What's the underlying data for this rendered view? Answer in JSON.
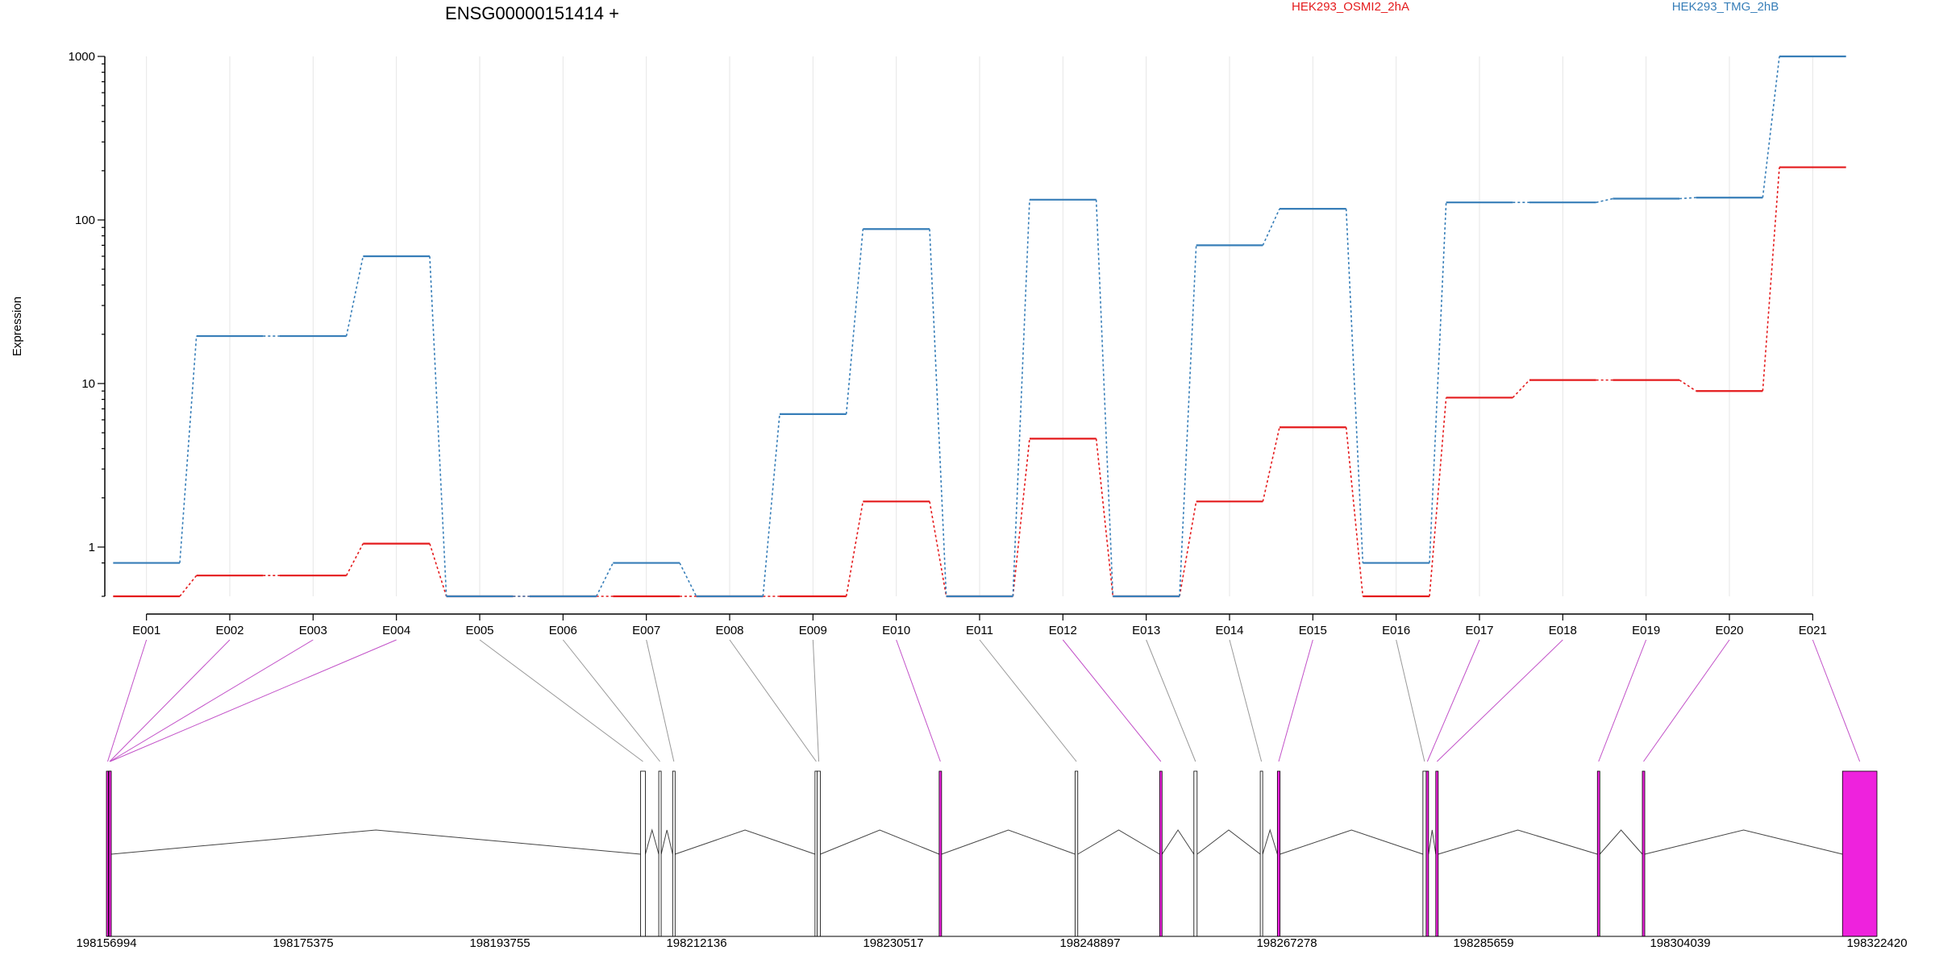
{
  "chart_data": {
    "type": "line",
    "title": "ENSG00000151414 +",
    "ylabel": "Expression",
    "yscale": "log",
    "yticks": [
      1,
      10,
      100,
      1000
    ],
    "ytick_labels": [
      "1",
      "10",
      "100",
      "1000"
    ],
    "categories": [
      "E001",
      "E002",
      "E003",
      "E004",
      "E005",
      "E006",
      "E007",
      "E008",
      "E009",
      "E010",
      "E011",
      "E012",
      "E013",
      "E014",
      "E015",
      "E016",
      "E017",
      "E018",
      "E019",
      "E020",
      "E021"
    ],
    "series": [
      {
        "name": "HEK293_OSMI2_2hA",
        "color": "#e41a1c",
        "values": [
          0.5,
          0.67,
          0.67,
          1.05,
          0.5,
          0.5,
          0.5,
          0.5,
          0.5,
          1.9,
          0.5,
          4.6,
          0.5,
          1.9,
          5.4,
          0.5,
          8.2,
          10.5,
          10.5,
          9.0,
          210
        ]
      },
      {
        "name": "HEK293_TMG_2hB",
        "color": "#377eb8",
        "values": [
          0.8,
          19.5,
          19.5,
          60,
          0.5,
          0.5,
          0.8,
          0.5,
          6.5,
          88,
          0.5,
          133,
          0.5,
          70,
          117,
          0.8,
          128,
          128,
          135,
          137,
          1000
        ]
      }
    ],
    "gene_model": {
      "coordinate_labels": [
        "198156994",
        "198175375",
        "198193755",
        "198212136",
        "198230517",
        "198248897",
        "198267278",
        "198285659",
        "198304039",
        "198322420"
      ],
      "exon_color": "#ee22dd",
      "exons": [
        {
          "id": "E001",
          "start": 198156994,
          "end": 198157180,
          "tested": true
        },
        {
          "id": "E002",
          "start": 198157180,
          "end": 198157200,
          "tested": true
        },
        {
          "id": "E003",
          "start": 198157200,
          "end": 198157220,
          "tested": true
        },
        {
          "id": "E004",
          "start": 198157220,
          "end": 198157260,
          "tested": true
        },
        {
          "id": "E005",
          "start": 198206900,
          "end": 198207350,
          "tested": false
        },
        {
          "id": "E006",
          "start": 198208600,
          "end": 198208750,
          "tested": false
        },
        {
          "id": "E007",
          "start": 198209900,
          "end": 198210050,
          "tested": false
        },
        {
          "id": "E008",
          "start": 198223200,
          "end": 198223400,
          "tested": false
        },
        {
          "id": "E009",
          "start": 198223400,
          "end": 198223700,
          "tested": false
        },
        {
          "id": "E010",
          "start": 198234800,
          "end": 198235000,
          "tested": true
        },
        {
          "id": "E011",
          "start": 198247500,
          "end": 198247750,
          "tested": false
        },
        {
          "id": "E012",
          "start": 198255400,
          "end": 198255600,
          "tested": true
        },
        {
          "id": "E013",
          "start": 198258600,
          "end": 198258900,
          "tested": false
        },
        {
          "id": "E014",
          "start": 198264800,
          "end": 198264920,
          "tested": false
        },
        {
          "id": "E015",
          "start": 198266400,
          "end": 198266650,
          "tested": true
        },
        {
          "id": "E016",
          "start": 198280000,
          "end": 198280300,
          "tested": false
        },
        {
          "id": "E017",
          "start": 198280300,
          "end": 198280480,
          "tested": true
        },
        {
          "id": "E018",
          "start": 198281200,
          "end": 198281400,
          "tested": true
        },
        {
          "id": "E019",
          "start": 198296300,
          "end": 198296500,
          "tested": true
        },
        {
          "id": "E020",
          "start": 198300500,
          "end": 198300700,
          "tested": true
        },
        {
          "id": "E021",
          "start": 198319200,
          "end": 198322420,
          "tested": true
        }
      ]
    }
  }
}
